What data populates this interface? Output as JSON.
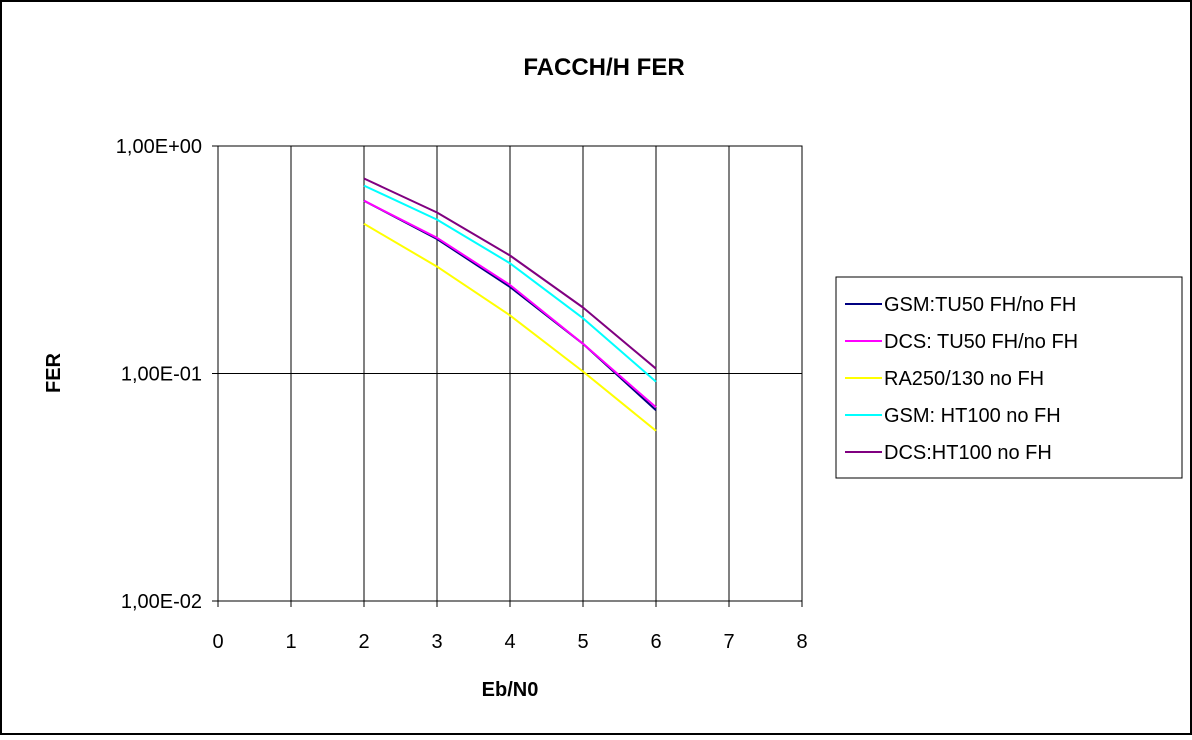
{
  "chart_data": {
    "type": "line",
    "title": "FACCH/H  FER",
    "xlabel": "Eb/N0",
    "ylabel": "FER",
    "x_scale": "linear",
    "y_scale": "log",
    "xlim": [
      0,
      8
    ],
    "ylim": [
      0.01,
      1
    ],
    "x_ticks": [
      0,
      1,
      2,
      3,
      4,
      5,
      6,
      7,
      8
    ],
    "x_tick_labels": [
      "0",
      "1",
      "2",
      "3",
      "4",
      "5",
      "6",
      "7",
      "8"
    ],
    "y_ticks": [
      1,
      0.1,
      0.01
    ],
    "y_tick_labels": [
      "1,00E+00",
      "1,00E-01",
      "1,00E-02"
    ],
    "grid": true,
    "legend_position": "right",
    "x": [
      2,
      3,
      4,
      5,
      6
    ],
    "series": [
      {
        "name": "GSM:TU50 FH/no FH",
        "color": "#000080",
        "values": [
          0.575,
          0.39,
          0.24,
          0.135,
          0.069
        ]
      },
      {
        "name": "DCS:  TU50 FH/no FH",
        "color": "#ff00ff",
        "values": [
          0.575,
          0.395,
          0.245,
          0.135,
          0.071
        ]
      },
      {
        "name": "RA250/130 no FH",
        "color": "#ffff00",
        "values": [
          0.455,
          0.295,
          0.18,
          0.102,
          0.056
        ]
      },
      {
        "name": "GSM:  HT100 no FH",
        "color": "#00ffff",
        "values": [
          0.67,
          0.475,
          0.305,
          0.175,
          0.092
        ]
      },
      {
        "name": "DCS:HT100 no FH",
        "color": "#800080",
        "values": [
          0.72,
          0.51,
          0.33,
          0.195,
          0.105
        ]
      }
    ]
  }
}
